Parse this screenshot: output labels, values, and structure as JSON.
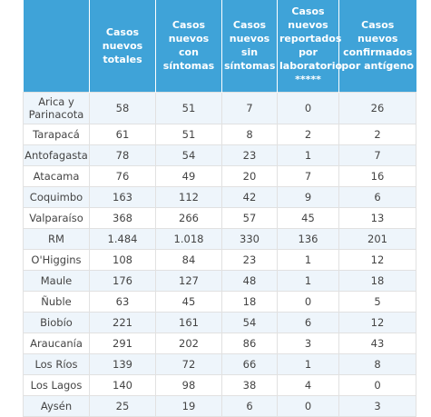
{
  "headers": [
    "",
    "Casos nuevos totales",
    "Casos nuevos con síntomas",
    "Casos nuevos sin síntomas",
    "Casos nuevos reportados por laboratorio *****",
    "Casos nuevos confirmados por antígeno"
  ],
  "rows": [
    [
      "Arica y Parinacota",
      "58",
      "51",
      "7",
      "0",
      "26"
    ],
    [
      "Tarapacá",
      "61",
      "51",
      "8",
      "2",
      "2"
    ],
    [
      "Antofagasta",
      "78",
      "54",
      "23",
      "1",
      "7"
    ],
    [
      "Atacama",
      "76",
      "49",
      "20",
      "7",
      "16"
    ],
    [
      "Coquimbo",
      "163",
      "112",
      "42",
      "9",
      "6"
    ],
    [
      "Valparaíso",
      "368",
      "266",
      "57",
      "45",
      "13"
    ],
    [
      "RM",
      "1.484",
      "1.018",
      "330",
      "136",
      "201"
    ],
    [
      "O'Higgins",
      "108",
      "84",
      "23",
      "1",
      "12"
    ],
    [
      "Maule",
      "176",
      "127",
      "48",
      "1",
      "18"
    ],
    [
      "Ñuble",
      "63",
      "45",
      "18",
      "0",
      "5"
    ],
    [
      "Biobío",
      "221",
      "161",
      "54",
      "6",
      "12"
    ],
    [
      "Araucanía",
      "291",
      "202",
      "86",
      "3",
      "43"
    ],
    [
      "Los Ríos",
      "139",
      "72",
      "66",
      "1",
      "8"
    ],
    [
      "Los Lagos",
      "140",
      "98",
      "38",
      "4",
      "0"
    ],
    [
      "Aysén",
      "25",
      "19",
      "6",
      "0",
      "3"
    ]
  ]
}
